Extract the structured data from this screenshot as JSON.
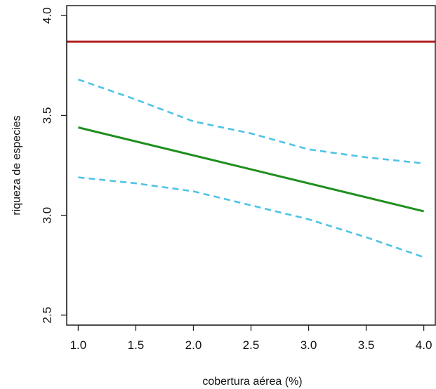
{
  "chart_data": {
    "type": "line",
    "title": "",
    "xlabel": "cobertura aérea (%)",
    "ylabel": "riqueza de especies",
    "xlim": [
      0.9,
      4.1
    ],
    "ylim": [
      2.45,
      4.05
    ],
    "xticks": [
      1.0,
      1.5,
      2.0,
      2.5,
      3.0,
      3.5,
      4.0
    ],
    "xtick_labels": [
      "1.0",
      "1.5",
      "2.0",
      "2.5",
      "3.0",
      "3.5",
      "4.0"
    ],
    "yticks": [
      2.5,
      3.0,
      3.5,
      4.0
    ],
    "ytick_labels": [
      "2.5",
      "3.0",
      "3.5",
      "4.0"
    ],
    "grid": false,
    "legend": "none",
    "series": [
      {
        "style": "solid",
        "color": "#b22222",
        "x": [
          0.9,
          4.1
        ],
        "y": [
          3.87,
          3.87
        ]
      },
      {
        "style": "solid",
        "color": "#1f8f1f",
        "x": [
          1.0,
          4.0
        ],
        "y": [
          3.44,
          3.02
        ]
      },
      {
        "style": "dashed",
        "color": "#4fc3e6",
        "x": [
          1.0,
          1.5,
          2.0,
          2.5,
          3.0,
          3.5,
          4.0
        ],
        "y": [
          3.68,
          3.58,
          3.47,
          3.41,
          3.33,
          3.29,
          3.26
        ]
      },
      {
        "style": "dashed",
        "color": "#4fc3e6",
        "x": [
          1.0,
          1.5,
          2.0,
          2.5,
          3.0,
          3.5,
          4.0
        ],
        "y": [
          3.19,
          3.16,
          3.12,
          3.05,
          2.98,
          2.89,
          2.79
        ]
      }
    ]
  }
}
